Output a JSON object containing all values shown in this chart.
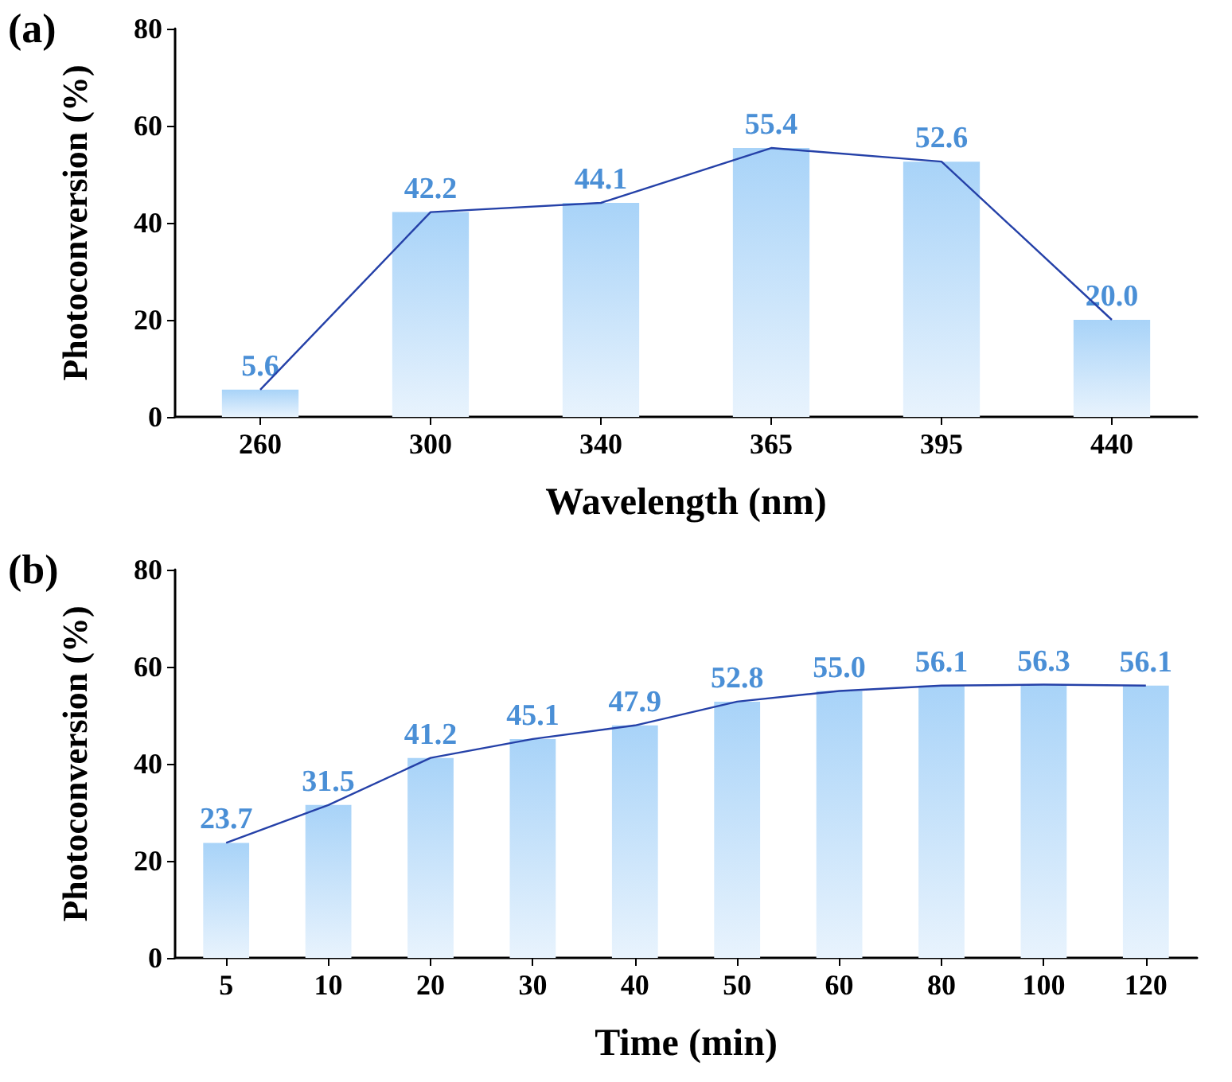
{
  "chart_data": [
    {
      "type": "bar",
      "title": "(a)",
      "xlabel": "Wavelength (nm)",
      "ylabel": "Photoconversion (%)",
      "categories": [
        "260",
        "300",
        "340",
        "365",
        "395",
        "440"
      ],
      "series": [
        {
          "color": "#a8d3f8",
          "values": [
            5.6,
            42.2,
            44.1,
            55.4,
            52.6,
            20.0
          ],
          "value_labels": [
            "5.6",
            "42.2",
            "44.1",
            "55.4",
            "52.6",
            "20.0"
          ]
        },
        {
          "type": "line",
          "color": "#2541a8",
          "values": [
            5.6,
            42.2,
            44.1,
            55.4,
            52.6,
            20.0
          ]
        }
      ],
      "ylim": [
        0,
        80
      ],
      "yticks": [
        0,
        20,
        40,
        60,
        80
      ],
      "marker": "none",
      "grid": false
    },
    {
      "type": "bar",
      "title": "(b)",
      "xlabel": "Time (min)",
      "ylabel": "Photoconversion (%)",
      "categories": [
        "5",
        "10",
        "20",
        "30",
        "40",
        "50",
        "60",
        "80",
        "100",
        "120"
      ],
      "series": [
        {
          "color": "#a8d3f8",
          "values": [
            23.7,
            31.5,
            41.2,
            45.1,
            47.9,
            52.8,
            55.0,
            56.1,
            56.3,
            56.1
          ],
          "value_labels": [
            "23.7",
            "31.5",
            "41.2",
            "45.1",
            "47.9",
            "52.8",
            "55.0",
            "56.1",
            "56.3",
            "56.1"
          ]
        },
        {
          "type": "line",
          "color": "#2541a8",
          "values": [
            23.7,
            31.5,
            41.2,
            45.1,
            47.9,
            52.8,
            55.0,
            56.1,
            56.3,
            56.1
          ]
        }
      ],
      "ylim": [
        0,
        80
      ],
      "yticks": [
        0,
        20,
        40,
        60,
        80
      ],
      "marker": "none",
      "grid": false
    }
  ]
}
